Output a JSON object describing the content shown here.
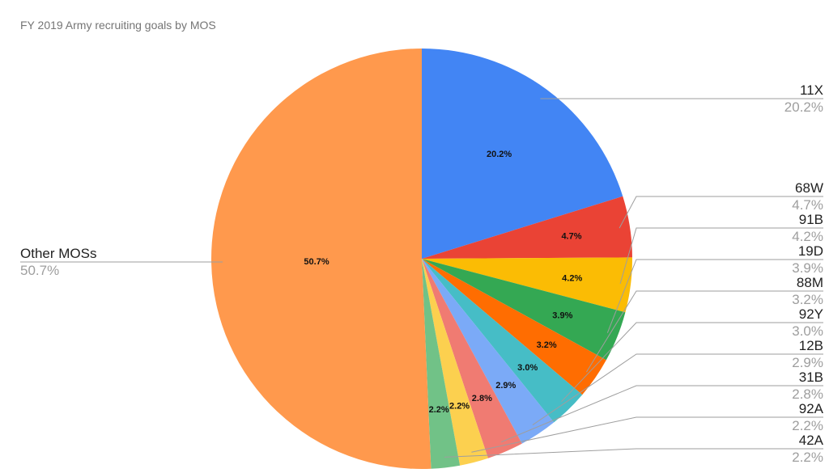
{
  "chart_data": {
    "type": "pie",
    "title": "FY 2019 Army recruiting goals by MOS",
    "categories": [
      "11X",
      "68W",
      "91B",
      "19D",
      "88M",
      "92Y",
      "12B",
      "31B",
      "92A",
      "42A",
      "Other MOSs"
    ],
    "values": [
      20.2,
      4.7,
      4.2,
      3.9,
      3.2,
      3.0,
      2.9,
      2.8,
      2.2,
      2.2,
      50.7
    ],
    "labels": [
      "20.2%",
      "4.7%",
      "4.2%",
      "3.9%",
      "3.2%",
      "3.0%",
      "2.9%",
      "2.8%",
      "2.2%",
      "2.2%",
      "50.7%"
    ],
    "colors": [
      "#4285f4",
      "#ea4335",
      "#fbbc04",
      "#34a853",
      "#ff6d01",
      "#46bdc6",
      "#7baaf7",
      "#f07b72",
      "#fcd04f",
      "#71c287",
      "#ff994d"
    ],
    "legend_position": "labeled",
    "start_angle_deg": 0,
    "direction": "clockwise"
  }
}
